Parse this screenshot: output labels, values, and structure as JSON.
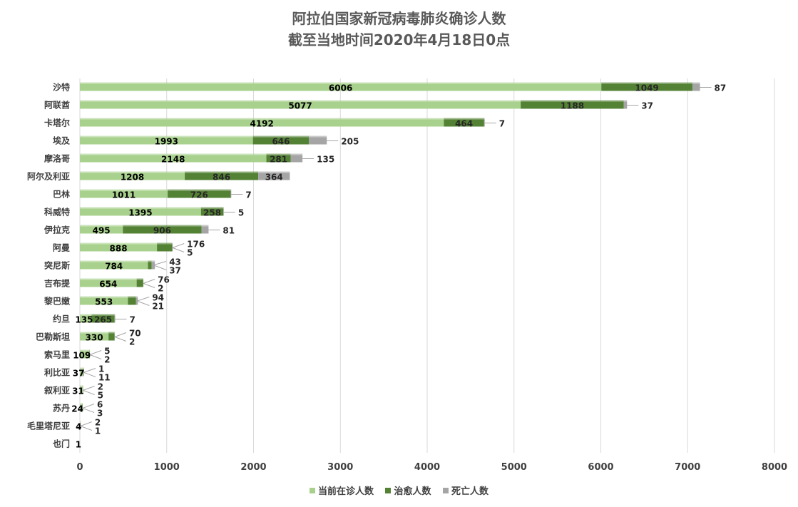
{
  "chart_data": {
    "type": "bar",
    "orientation": "horizontal",
    "stacked": true,
    "title": "阿拉伯国家新冠病毒肺炎确诊人数",
    "subtitle": "截至当地时间2020年4月18日0点",
    "categories": [
      "沙特",
      "阿联酋",
      "卡塔尔",
      "埃及",
      "摩洛哥",
      "阿尔及利亚",
      "巴林",
      "科威特",
      "伊拉克",
      "阿曼",
      "突尼斯",
      "吉布提",
      "黎巴嫩",
      "约旦",
      "巴勒斯坦",
      "索马里",
      "利比亚",
      "叙利亚",
      "苏丹",
      "毛里塔尼亚",
      "也门"
    ],
    "series": [
      {
        "name": "当前在诊人数",
        "color": "#a9d18e",
        "values": [
          6006,
          5077,
          4192,
          1993,
          2148,
          1208,
          1011,
          1395,
          495,
          888,
          784,
          654,
          553,
          135,
          330,
          109,
          37,
          31,
          24,
          4,
          1
        ]
      },
      {
        "name": "治愈人数",
        "color": "#548235",
        "values": [
          1049,
          1188,
          464,
          646,
          281,
          846,
          726,
          258,
          906,
          176,
          43,
          76,
          94,
          265,
          70,
          5,
          1,
          2,
          6,
          2,
          0
        ]
      },
      {
        "name": "死亡人数",
        "color": "#a5a5a5",
        "values": [
          87,
          37,
          7,
          205,
          135,
          364,
          7,
          5,
          81,
          5,
          37,
          2,
          21,
          7,
          2,
          2,
          11,
          5,
          3,
          1,
          0
        ]
      }
    ],
    "xlim": [
      0,
      8000
    ],
    "xticks": [
      0,
      1000,
      2000,
      3000,
      4000,
      5000,
      6000,
      7000,
      8000
    ],
    "grid": true,
    "legend_position": "bottom"
  }
}
